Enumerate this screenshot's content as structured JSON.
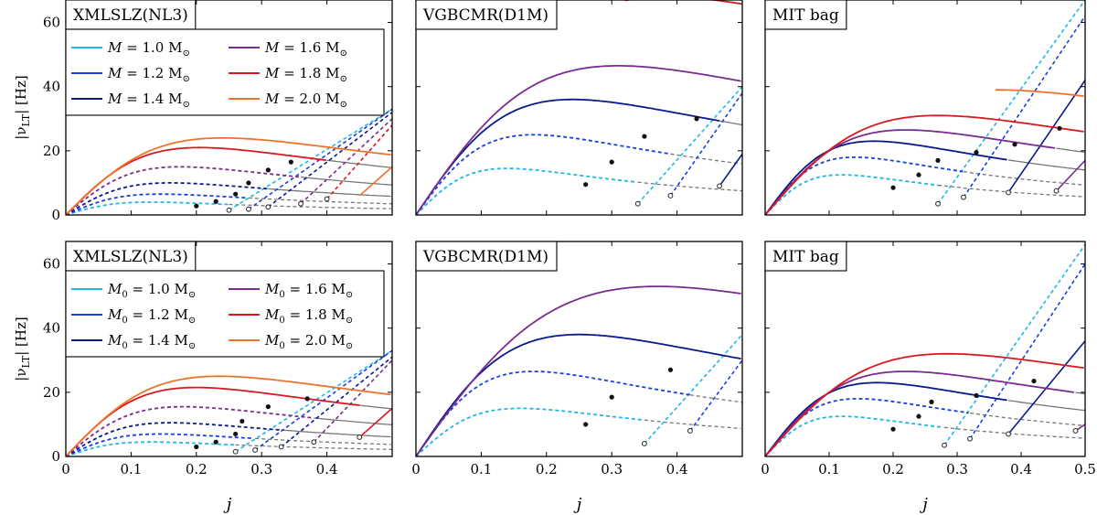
{
  "figure": {
    "xlabel": "j",
    "ylabel": "|ν",
    "ylabel_sub": "LT",
    "ylabel_unit": "|  [Hz]",
    "x_ticks": [
      "0",
      "0.1",
      "0.2",
      "0.3",
      "0.4"
    ],
    "x_ticks_last": [
      "0",
      "0.1",
      "0.2",
      "0.3",
      "0.4",
      "0.5"
    ],
    "y_ticks": [
      "0",
      "20",
      "40",
      "60"
    ]
  },
  "colors": {
    "m10": "#1fb7e8",
    "m12": "#1a3fe0",
    "m14": "#0a1a8c",
    "m16": "#7b2d8e",
    "m18": "#d71920",
    "m20": "#f07228",
    "gray": "#777777",
    "dot": "#111111"
  },
  "legend_rows": [
    {
      "left": {
        "sym": "M",
        "sub": "",
        "text": " = 1.0 M",
        "key": "m10"
      },
      "right": {
        "sym": "M",
        "sub": "",
        "text": " = 1.6 M",
        "key": "m16"
      }
    },
    {
      "left": {
        "sym": "M",
        "sub": "",
        "text": " = 1.2 M",
        "key": "m12"
      },
      "right": {
        "sym": "M",
        "sub": "",
        "text": " = 1.8 M",
        "key": "m18"
      }
    },
    {
      "left": {
        "sym": "M",
        "sub": "",
        "text": " = 1.4 M",
        "key": "m14"
      },
      "right": {
        "sym": "M",
        "sub": "",
        "text": " = 2.0 M",
        "key": "m20"
      }
    }
  ],
  "legend_rows_bottom": [
    {
      "left": {
        "sym": "M",
        "sub": "0",
        "text": " = 1.0 M",
        "key": "m10"
      },
      "right": {
        "sym": "M",
        "sub": "0",
        "text": " = 1.6 M",
        "key": "m16"
      }
    },
    {
      "left": {
        "sym": "M",
        "sub": "0",
        "text": " = 1.2 M",
        "key": "m12"
      },
      "right": {
        "sym": "M",
        "sub": "0",
        "text": " = 1.8 M",
        "key": "m18"
      }
    },
    {
      "left": {
        "sym": "M",
        "sub": "0",
        "text": " = 1.4 M",
        "key": "m14"
      },
      "right": {
        "sym": "M",
        "sub": "0",
        "text": " = 2.0 M",
        "key": "m20"
      }
    }
  ],
  "legend_sun": "⊙",
  "chart_data": [
    {
      "type": "line",
      "title": "XMLSLZ(NL3)",
      "xlabel": "",
      "ylabel": "|νLT| [Hz]",
      "xlim": [
        0,
        0.5
      ],
      "ylim": [
        0,
        67
      ],
      "series": [
        {
          "name": "M = 1.0 M☉",
          "color": "m10",
          "style": "dashed",
          "peak_x": 0.13,
          "peak_y": 4,
          "end_x": 0.25,
          "rise": [
            [
              0.25,
              1.5
            ],
            [
              0.5,
              33
            ]
          ],
          "dot": [
            0.2,
            2.8
          ]
        },
        {
          "name": "M = 1.2 M☉",
          "color": "m12",
          "style": "dashed",
          "peak_x": 0.145,
          "peak_y": 6.5,
          "end_x": 0.28,
          "rise": [
            [
              0.28,
              1.8
            ],
            [
              0.5,
              33
            ]
          ],
          "dot": [
            0.23,
            4.2
          ]
        },
        {
          "name": "M = 1.4 M☉",
          "color": "m14",
          "style": "dashed",
          "peak_x": 0.16,
          "peak_y": 10,
          "end_x": 0.31,
          "rise": [
            [
              0.31,
              2.5
            ],
            [
              0.5,
              32
            ]
          ],
          "dot": [
            0.26,
            6.5
          ]
        },
        {
          "name": "M = 1.6 M☉",
          "color": "m16",
          "style": "dashed",
          "peak_x": 0.175,
          "peak_y": 15,
          "end_x": 0.36,
          "rise": [
            [
              0.36,
              3.5
            ],
            [
              0.5,
              30
            ]
          ],
          "dot": [
            0.28,
            10
          ]
        },
        {
          "name": "M = 1.8 M☉",
          "color": "m18",
          "style": "mixed",
          "peak_x": 0.205,
          "peak_y": 21,
          "end_x": 0.4,
          "rise": [
            [
              0.4,
              5
            ],
            [
              0.5,
              28
            ]
          ],
          "dot": [
            0.31,
            14
          ]
        },
        {
          "name": "M = 2.0 M☉",
          "color": "m20",
          "style": "solid",
          "peak_x": 0.24,
          "peak_y": 24,
          "end_x": 0.5,
          "rise": [
            [
              0.45,
              6
            ],
            [
              0.5,
              15
            ]
          ],
          "dot": [
            0.345,
            16.5
          ]
        }
      ]
    },
    {
      "type": "line",
      "title": "VGBCMR(D1M)",
      "xlabel": "",
      "ylabel": "",
      "xlim": [
        0,
        0.5
      ],
      "ylim": [
        0,
        67
      ],
      "series": [
        {
          "name": "M = 1.0 M☉",
          "color": "m10",
          "style": "dashed",
          "peak_x": 0.14,
          "peak_y": 14.5,
          "end_x": 0.34,
          "rise": [
            [
              0.34,
              3.5
            ],
            [
              0.5,
              40
            ]
          ],
          "dot": [
            0.26,
            9.5
          ]
        },
        {
          "name": "M = 1.2 M☉",
          "color": "m12",
          "style": "dashed",
          "peak_x": 0.18,
          "peak_y": 25,
          "end_x": 0.39,
          "rise": [
            [
              0.39,
              6
            ],
            [
              0.5,
              38
            ]
          ],
          "dot": [
            0.3,
            16.5
          ]
        },
        {
          "name": "M = 1.4 M☉",
          "color": "m14",
          "style": "solid",
          "peak_x": 0.24,
          "peak_y": 36,
          "end_x": 0.465,
          "rise": [
            [
              0.465,
              9
            ],
            [
              0.5,
              19
            ]
          ],
          "dot": [
            0.35,
            24.5
          ]
        },
        {
          "name": "M = 1.6 M☉",
          "color": "m16",
          "style": "solid",
          "peak_x": 0.31,
          "peak_y": 46.5,
          "end_x": 0.5,
          "rise": [],
          "dot": [
            0.43,
            30
          ]
        },
        {
          "name": "M = 1.8 M☉",
          "color": "m18",
          "style": "solid",
          "peak_x": 0.385,
          "peak_y": 68,
          "end_x": 0.5,
          "start_x": 0.32,
          "rise": [],
          "dot": null
        }
      ]
    },
    {
      "type": "line",
      "title": "MIT bag",
      "xlabel": "",
      "ylabel": "",
      "xlim": [
        0,
        0.5
      ],
      "ylim": [
        0,
        67
      ],
      "series": [
        {
          "name": "M = 1.0 M☉",
          "color": "m10",
          "style": "dashed",
          "peak_x": 0.12,
          "peak_y": 12.5,
          "end_x": 0.27,
          "rise": [
            [
              0.27,
              3.5
            ],
            [
              0.5,
              67
            ]
          ],
          "dot": [
            0.2,
            8.5
          ]
        },
        {
          "name": "M = 1.2 M☉",
          "color": "m12",
          "style": "dashed",
          "peak_x": 0.14,
          "peak_y": 18,
          "end_x": 0.31,
          "rise": [
            [
              0.31,
              5.5
            ],
            [
              0.5,
              62
            ]
          ],
          "dot": [
            0.24,
            12.5
          ]
        },
        {
          "name": "M = 1.4 M☉",
          "color": "m14",
          "style": "solid",
          "peak_x": 0.17,
          "peak_y": 23,
          "end_x": 0.38,
          "rise": [
            [
              0.38,
              7
            ],
            [
              0.5,
              42
            ]
          ],
          "dot": [
            0.27,
            17
          ]
        },
        {
          "name": "M = 1.6 M☉",
          "color": "m16",
          "style": "solid",
          "peak_x": 0.22,
          "peak_y": 26.5,
          "end_x": 0.455,
          "rise": [
            [
              0.455,
              7.5
            ],
            [
              0.5,
              17
            ]
          ],
          "dot": [
            0.33,
            19.5
          ]
        },
        {
          "name": "M = 1.8 M☉",
          "color": "m18",
          "style": "solid",
          "peak_x": 0.27,
          "peak_y": 31,
          "end_x": 0.5,
          "rise": [],
          "dot": [
            0.39,
            22
          ]
        },
        {
          "name": "M = 2.0 M☉",
          "color": "m20",
          "style": "solid",
          "peak_x": 0.36,
          "peak_y": 39,
          "end_x": 0.5,
          "start_x": 0.36,
          "rise": [],
          "dot": [
            0.46,
            27
          ]
        }
      ]
    },
    {
      "type": "line",
      "title": "XMLSLZ(NL3)",
      "xlabel": "j",
      "ylabel": "|νLT| [Hz]",
      "xlim": [
        0,
        0.5
      ],
      "ylim": [
        0,
        67
      ],
      "series": [
        {
          "name": "M0 = 1.0 M☉",
          "color": "m10",
          "style": "dashed",
          "peak_x": 0.13,
          "peak_y": 4.5,
          "end_x": 0.26,
          "rise": [
            [
              0.26,
              1.5
            ],
            [
              0.5,
              33
            ]
          ],
          "dot": [
            0.2,
            3
          ]
        },
        {
          "name": "M0 = 1.2 M☉",
          "color": "m12",
          "style": "dashed",
          "peak_x": 0.145,
          "peak_y": 7,
          "end_x": 0.29,
          "rise": [
            [
              0.29,
              2
            ],
            [
              0.5,
              33
            ]
          ],
          "dot": [
            0.23,
            4.5
          ]
        },
        {
          "name": "M0 = 1.4 M☉",
          "color": "m14",
          "style": "dashed",
          "peak_x": 0.16,
          "peak_y": 10.5,
          "end_x": 0.33,
          "rise": [
            [
              0.33,
              3
            ],
            [
              0.5,
              31
            ]
          ],
          "dot": [
            0.26,
            7
          ]
        },
        {
          "name": "M0 = 1.6 M☉",
          "color": "m16",
          "style": "dashed",
          "peak_x": 0.18,
          "peak_y": 15.5,
          "end_x": 0.38,
          "rise": [
            [
              0.38,
              4.5
            ],
            [
              0.5,
              30
            ]
          ],
          "dot": [
            0.27,
            11
          ]
        },
        {
          "name": "M0 = 1.8 M☉",
          "color": "m18",
          "style": "solid",
          "peak_x": 0.2,
          "peak_y": 21.5,
          "end_x": 0.45,
          "rise": [
            [
              0.45,
              6
            ],
            [
              0.5,
              15
            ]
          ],
          "dot": [
            0.31,
            15.5
          ]
        },
        {
          "name": "M0 = 2.0 M☉",
          "color": "m20",
          "style": "solid",
          "peak_x": 0.235,
          "peak_y": 25,
          "end_x": 0.5,
          "rise": [],
          "dot": [
            0.37,
            18
          ]
        }
      ]
    },
    {
      "type": "line",
      "title": "VGBCMR(D1M)",
      "xlabel": "j",
      "ylabel": "",
      "xlim": [
        0,
        0.5
      ],
      "ylim": [
        0,
        67
      ],
      "series": [
        {
          "name": "M0 = 1.0 M☉",
          "color": "m10",
          "style": "dashed",
          "peak_x": 0.16,
          "peak_y": 15,
          "end_x": 0.35,
          "rise": [
            [
              0.35,
              4
            ],
            [
              0.5,
              38
            ]
          ],
          "dot": [
            0.26,
            10
          ]
        },
        {
          "name": "M0 = 1.2 M☉",
          "color": "m12",
          "style": "dashed",
          "peak_x": 0.18,
          "peak_y": 26.5,
          "end_x": 0.42,
          "rise": [
            [
              0.42,
              8
            ],
            [
              0.5,
              30
            ]
          ],
          "dot": [
            0.3,
            18.5
          ]
        },
        {
          "name": "M0 = 1.4 M☉",
          "color": "m14",
          "style": "solid",
          "peak_x": 0.25,
          "peak_y": 38,
          "end_x": 0.5,
          "rise": [],
          "dot": [
            0.39,
            27
          ]
        },
        {
          "name": "M0 = 1.6 M☉",
          "color": "m16",
          "style": "solid",
          "peak_x": 0.37,
          "peak_y": 53,
          "end_x": 0.5,
          "rise": [],
          "dot": null
        }
      ]
    },
    {
      "type": "line",
      "title": "MIT bag",
      "xlabel": "j",
      "ylabel": "",
      "xlim": [
        0,
        0.5
      ],
      "ylim": [
        0,
        67
      ],
      "series": [
        {
          "name": "M0 = 1.0 M☉",
          "color": "m10",
          "style": "dashed",
          "peak_x": 0.12,
          "peak_y": 12.5,
          "end_x": 0.28,
          "rise": [
            [
              0.28,
              3.5
            ],
            [
              0.5,
              66
            ]
          ],
          "dot": [
            0.2,
            8.5
          ]
        },
        {
          "name": "M0 = 1.2 M☉",
          "color": "m12",
          "style": "dashed",
          "peak_x": 0.145,
          "peak_y": 18,
          "end_x": 0.32,
          "rise": [
            [
              0.32,
              5.5
            ],
            [
              0.5,
              60
            ]
          ],
          "dot": [
            0.24,
            12.5
          ]
        },
        {
          "name": "M0 = 1.4 M☉",
          "color": "m14",
          "style": "solid",
          "peak_x": 0.175,
          "peak_y": 23,
          "end_x": 0.38,
          "rise": [
            [
              0.38,
              7
            ],
            [
              0.5,
              36
            ]
          ],
          "dot": [
            0.26,
            17
          ]
        },
        {
          "name": "M0 = 1.6 M☉",
          "color": "m16",
          "style": "solid",
          "peak_x": 0.22,
          "peak_y": 26.5,
          "end_x": 0.485,
          "rise": [
            [
              0.485,
              8
            ],
            [
              0.5,
              10
            ]
          ],
          "dot": [
            0.33,
            19
          ]
        },
        {
          "name": "M0 = 1.8 M☉",
          "color": "m18",
          "style": "solid",
          "peak_x": 0.285,
          "peak_y": 32,
          "end_x": 0.5,
          "rise": [],
          "dot": [
            0.42,
            23.5
          ]
        }
      ]
    }
  ]
}
